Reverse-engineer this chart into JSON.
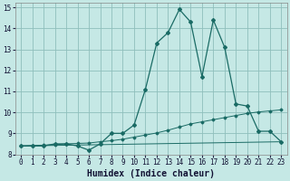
{
  "xlabel": "Humidex (Indice chaleur)",
  "xlim": [
    -0.5,
    23.5
  ],
  "ylim": [
    8,
    15.2
  ],
  "background_color": "#c5e8e5",
  "grid_color": "#8fbfbc",
  "line_color": "#1a6b65",
  "series1": {
    "x": [
      0,
      1,
      2,
      3,
      4,
      5,
      6,
      7,
      8,
      9,
      10,
      11,
      12,
      13,
      14,
      15,
      16,
      17,
      18,
      19,
      20,
      21,
      22,
      23
    ],
    "y": [
      8.4,
      8.4,
      8.4,
      8.5,
      8.5,
      8.4,
      8.2,
      8.5,
      9.0,
      9.0,
      9.4,
      11.1,
      13.3,
      13.8,
      14.9,
      14.3,
      11.7,
      14.4,
      13.1,
      10.4,
      10.3,
      9.1,
      9.1,
      8.6
    ]
  },
  "series2": {
    "x": [
      0,
      1,
      2,
      3,
      4,
      5,
      6,
      7,
      8,
      9,
      10,
      11,
      12,
      13,
      14,
      15,
      16,
      17,
      18,
      19,
      20,
      21,
      22,
      23
    ],
    "y": [
      8.4,
      8.42,
      8.44,
      8.46,
      8.5,
      8.52,
      8.54,
      8.6,
      8.65,
      8.72,
      8.82,
      8.92,
      9.02,
      9.15,
      9.3,
      9.45,
      9.55,
      9.65,
      9.75,
      9.85,
      9.95,
      10.02,
      10.07,
      10.12
    ]
  },
  "series3": {
    "x": [
      0,
      23
    ],
    "y": [
      8.4,
      8.6
    ]
  },
  "xticks": [
    0,
    1,
    2,
    3,
    4,
    5,
    6,
    7,
    8,
    9,
    10,
    11,
    12,
    13,
    14,
    15,
    16,
    17,
    18,
    19,
    20,
    21,
    22,
    23
  ],
  "yticks": [
    8,
    9,
    10,
    11,
    12,
    13,
    14,
    15
  ],
  "tick_fontsize": 5.5,
  "label_fontsize": 7.0
}
